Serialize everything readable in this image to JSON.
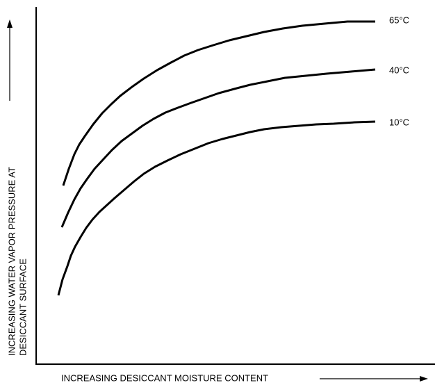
{
  "y_axis": {
    "lines": [
      "INCREASING WATER VAPOR PRESSURE AT",
      "DESICCANT SURFACE"
    ]
  },
  "x_axis": {
    "label": "INCREASING DESICCANT MOISTURE CONTENT"
  },
  "curves": [
    {
      "label": "65°C"
    },
    {
      "label": "40°C"
    },
    {
      "label": "10°C"
    }
  ]
}
